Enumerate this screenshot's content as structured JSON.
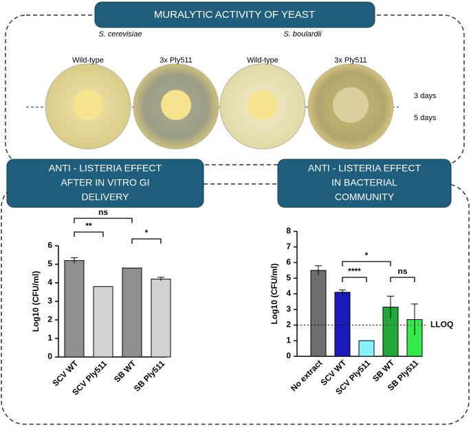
{
  "header": {
    "title": "MURALYTIC ACTIVITY OF YEAST",
    "species": [
      "S. cerevisiae",
      "S. boulardii"
    ],
    "plates": [
      "Wild-type",
      "3x Ply511",
      "Wild-type",
      "3x Ply511"
    ],
    "times": [
      "3 days",
      "5 days"
    ]
  },
  "panels": [
    {
      "title": [
        "ANTI - LISTERIA EFFECT",
        "AFTER IN VITRO GI",
        "DELIVERY"
      ]
    },
    {
      "title": [
        "ANTI - LISTERIA EFFECT",
        "IN BACTERIAL",
        "COMMUNITY"
      ]
    }
  ],
  "chart_data": [
    {
      "type": "bar",
      "y_label": "Log10 (CFU/ml)",
      "categories": [
        "SCV WT",
        "SCV Ply511",
        "SB WT",
        "SB Ply511"
      ],
      "values": [
        5.2,
        3.8,
        4.8,
        4.2
      ],
      "errors": [
        0.15,
        0,
        0,
        0.1
      ],
      "colors": [
        "#8f8f8f",
        "#d2d2d2",
        "#8f8f8f",
        "#d2d2d2"
      ],
      "ylim": [
        0,
        6
      ],
      "yticks": [
        0,
        1,
        2,
        3,
        4,
        5,
        6
      ],
      "annotations": [
        "**",
        "ns",
        "*"
      ]
    },
    {
      "type": "bar",
      "y_label": "Log10 (CFU/ml)",
      "categories": [
        "No extract",
        "SCV WT",
        "SCV Ply511",
        "SB WT",
        "SB Ply511"
      ],
      "values": [
        5.5,
        4.1,
        1.0,
        3.15,
        2.35
      ],
      "errors": [
        0.3,
        0.15,
        0,
        0.7,
        1.0
      ],
      "colors": [
        "#6e6e6e",
        "#1a1ab8",
        "#86f2ff",
        "#22a83a",
        "#33ea4a"
      ],
      "ylim": [
        0,
        8
      ],
      "yticks": [
        0,
        1,
        2,
        3,
        4,
        5,
        6,
        7,
        8
      ],
      "reference_line": {
        "value": 2,
        "label": "LLOQ"
      },
      "annotations": [
        "*",
        "****",
        "ns"
      ]
    }
  ]
}
